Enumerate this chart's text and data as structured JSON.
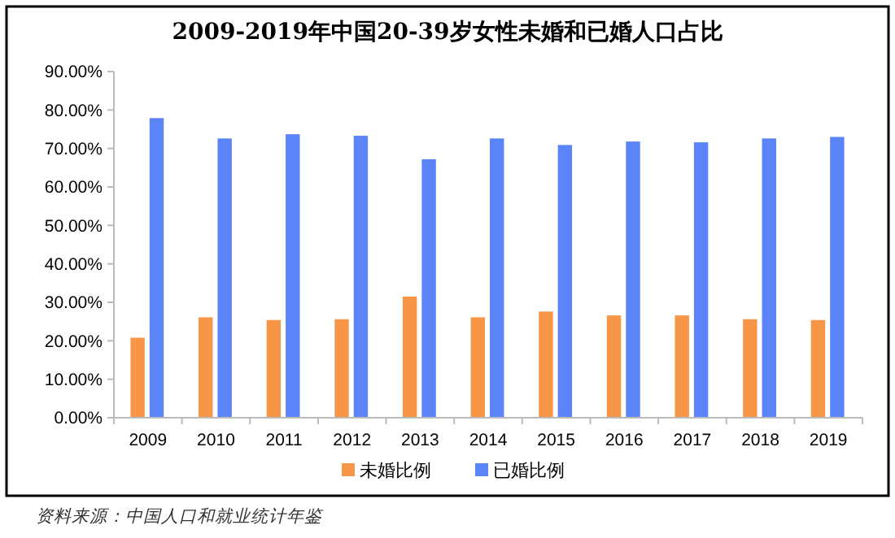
{
  "chart_data": {
    "type": "bar",
    "title": "2009-2019年中国20-39岁女性未婚和已婚人口占比",
    "categories": [
      "2009",
      "2010",
      "2011",
      "2012",
      "2013",
      "2014",
      "2015",
      "2016",
      "2017",
      "2018",
      "2019"
    ],
    "series": [
      {
        "name": "未婚比例",
        "color": "#f79646",
        "values": [
          20.8,
          26.1,
          25.4,
          25.6,
          31.5,
          26.1,
          27.6,
          26.6,
          26.6,
          25.6,
          25.4
        ]
      },
      {
        "name": "已婚比例",
        "color": "#5b84f8",
        "values": [
          77.9,
          72.6,
          73.7,
          73.3,
          67.2,
          72.6,
          70.9,
          71.8,
          71.6,
          72.6,
          73.0
        ]
      }
    ],
    "ylim": [
      0,
      90
    ],
    "yticks": [
      {
        "value": 0,
        "label": "0.00%"
      },
      {
        "value": 10,
        "label": "10.00%"
      },
      {
        "value": 20,
        "label": "20.00%"
      },
      {
        "value": 30,
        "label": "30.00%"
      },
      {
        "value": 40,
        "label": "40.00%"
      },
      {
        "value": 50,
        "label": "50.00%"
      },
      {
        "value": 60,
        "label": "60.00%"
      },
      {
        "value": 70,
        "label": "70.00%"
      },
      {
        "value": 80,
        "label": "80.00%"
      },
      {
        "value": 90,
        "label": "90.00%"
      }
    ],
    "grid": false,
    "legend": "bottom",
    "annotations": [
      "资料来源：中国人口和就业统计年鉴"
    ]
  }
}
